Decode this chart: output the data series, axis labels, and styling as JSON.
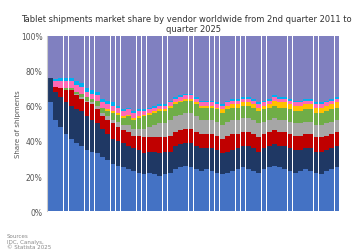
{
  "title": "Tablet shipments market share by vendor worldwide from 2nd quarter 2011 to 1st\nquarter 2025",
  "ylabel": "Share of shipments",
  "n_bars": 56,
  "ylim": [
    0,
    1
  ],
  "yticks": [
    0,
    0.2,
    0.4,
    0.6,
    0.8,
    1.0
  ],
  "ytick_labels": [
    "0%",
    "20%",
    "40%",
    "60%",
    "80%",
    "100%"
  ],
  "source_text": "Sources\nIDC, Canalys,\n© Statista 2025",
  "background_color": "#FFFFFF",
  "plot_bg_color": "#FFFFFF",
  "apple_color": "#4472C4",
  "samsung_color": "#1F3864",
  "amazon_color": "#C00000",
  "huawei_color": "#A6A6A6",
  "lenovo_color": "#70AD47",
  "yellow_color": "#FFC000",
  "pink_color": "#FF69B4",
  "lightblue_color": "#00B0F0",
  "teal_color": "#00B050",
  "top_color": "#8080C0",
  "apple": [
    0.62,
    0.52,
    0.48,
    0.44,
    0.41,
    0.39,
    0.37,
    0.35,
    0.34,
    0.33,
    0.31,
    0.29,
    0.27,
    0.26,
    0.25,
    0.24,
    0.23,
    0.22,
    0.21,
    0.22,
    0.21,
    0.2,
    0.21,
    0.22,
    0.24,
    0.25,
    0.26,
    0.25,
    0.24,
    0.23,
    0.24,
    0.23,
    0.22,
    0.21,
    0.22,
    0.23,
    0.24,
    0.25,
    0.24,
    0.23,
    0.22,
    0.24,
    0.25,
    0.26,
    0.25,
    0.24,
    0.23,
    0.22,
    0.23,
    0.24,
    0.23,
    0.22,
    0.21,
    0.23,
    0.24,
    0.25
  ],
  "samsung": [
    0.14,
    0.16,
    0.17,
    0.18,
    0.19,
    0.19,
    0.2,
    0.19,
    0.18,
    0.17,
    0.16,
    0.15,
    0.14,
    0.14,
    0.14,
    0.13,
    0.13,
    0.13,
    0.12,
    0.12,
    0.13,
    0.13,
    0.13,
    0.12,
    0.13,
    0.13,
    0.13,
    0.14,
    0.13,
    0.13,
    0.12,
    0.13,
    0.13,
    0.12,
    0.12,
    0.12,
    0.12,
    0.12,
    0.13,
    0.13,
    0.12,
    0.12,
    0.12,
    0.12,
    0.12,
    0.13,
    0.13,
    0.13,
    0.12,
    0.12,
    0.13,
    0.12,
    0.13,
    0.12,
    0.12,
    0.12
  ],
  "amazon": [
    0.0,
    0.03,
    0.05,
    0.07,
    0.09,
    0.08,
    0.07,
    0.08,
    0.09,
    0.08,
    0.07,
    0.08,
    0.09,
    0.08,
    0.07,
    0.08,
    0.07,
    0.08,
    0.09,
    0.08,
    0.08,
    0.09,
    0.08,
    0.09,
    0.08,
    0.08,
    0.08,
    0.08,
    0.08,
    0.08,
    0.08,
    0.08,
    0.08,
    0.08,
    0.09,
    0.09,
    0.08,
    0.08,
    0.08,
    0.08,
    0.08,
    0.08,
    0.08,
    0.08,
    0.08,
    0.08,
    0.08,
    0.08,
    0.08,
    0.08,
    0.08,
    0.08,
    0.08,
    0.08,
    0.08,
    0.08
  ],
  "huawei": [
    0.0,
    0.0,
    0.0,
    0.0,
    0.0,
    0.01,
    0.01,
    0.01,
    0.01,
    0.02,
    0.02,
    0.02,
    0.02,
    0.03,
    0.03,
    0.04,
    0.04,
    0.04,
    0.05,
    0.06,
    0.07,
    0.08,
    0.08,
    0.09,
    0.09,
    0.09,
    0.09,
    0.09,
    0.09,
    0.08,
    0.08,
    0.08,
    0.08,
    0.08,
    0.08,
    0.08,
    0.08,
    0.08,
    0.08,
    0.08,
    0.08,
    0.07,
    0.07,
    0.07,
    0.07,
    0.07,
    0.07,
    0.07,
    0.07,
    0.07,
    0.07,
    0.07,
    0.07,
    0.07,
    0.07,
    0.07
  ],
  "lenovo": [
    0.0,
    0.0,
    0.0,
    0.01,
    0.01,
    0.01,
    0.02,
    0.02,
    0.02,
    0.03,
    0.03,
    0.03,
    0.04,
    0.04,
    0.04,
    0.05,
    0.05,
    0.06,
    0.07,
    0.07,
    0.07,
    0.07,
    0.07,
    0.07,
    0.07,
    0.07,
    0.07,
    0.07,
    0.07,
    0.07,
    0.07,
    0.07,
    0.07,
    0.07,
    0.07,
    0.07,
    0.07,
    0.07,
    0.07,
    0.07,
    0.07,
    0.07,
    0.07,
    0.07,
    0.07,
    0.07,
    0.07,
    0.07,
    0.07,
    0.07,
    0.07,
    0.07,
    0.07,
    0.07,
    0.07,
    0.07
  ],
  "yellow": [
    0.0,
    0.0,
    0.0,
    0.0,
    0.0,
    0.0,
    0.0,
    0.0,
    0.0,
    0.0,
    0.0,
    0.01,
    0.01,
    0.01,
    0.01,
    0.01,
    0.01,
    0.01,
    0.01,
    0.01,
    0.01,
    0.01,
    0.01,
    0.01,
    0.01,
    0.01,
    0.01,
    0.01,
    0.01,
    0.01,
    0.01,
    0.01,
    0.01,
    0.02,
    0.02,
    0.02,
    0.02,
    0.02,
    0.02,
    0.02,
    0.02,
    0.02,
    0.02,
    0.03,
    0.03,
    0.03,
    0.03,
    0.03,
    0.03,
    0.03,
    0.03,
    0.03,
    0.03,
    0.03,
    0.03,
    0.03
  ],
  "pink": [
    0.0,
    0.03,
    0.04,
    0.04,
    0.04,
    0.04,
    0.04,
    0.03,
    0.03,
    0.03,
    0.03,
    0.03,
    0.03,
    0.03,
    0.03,
    0.03,
    0.03,
    0.03,
    0.02,
    0.02,
    0.02,
    0.02,
    0.02,
    0.02,
    0.02,
    0.02,
    0.02,
    0.02,
    0.02,
    0.02,
    0.02,
    0.02,
    0.02,
    0.02,
    0.02,
    0.02,
    0.02,
    0.02,
    0.02,
    0.02,
    0.02,
    0.02,
    0.02,
    0.02,
    0.02,
    0.02,
    0.02,
    0.02,
    0.02,
    0.02,
    0.02,
    0.02,
    0.02,
    0.02,
    0.02,
    0.02
  ],
  "lightblue": [
    0.0,
    0.01,
    0.02,
    0.02,
    0.02,
    0.02,
    0.02,
    0.02,
    0.02,
    0.02,
    0.02,
    0.02,
    0.02,
    0.01,
    0.01,
    0.01,
    0.01,
    0.01,
    0.01,
    0.01,
    0.01,
    0.01,
    0.01,
    0.01,
    0.01,
    0.01,
    0.01,
    0.01,
    0.01,
    0.01,
    0.01,
    0.01,
    0.01,
    0.01,
    0.01,
    0.01,
    0.01,
    0.01,
    0.01,
    0.01,
    0.01,
    0.01,
    0.01,
    0.01,
    0.01,
    0.01,
    0.01,
    0.01,
    0.01,
    0.01,
    0.01,
    0.01,
    0.01,
    0.01,
    0.01,
    0.01
  ]
}
